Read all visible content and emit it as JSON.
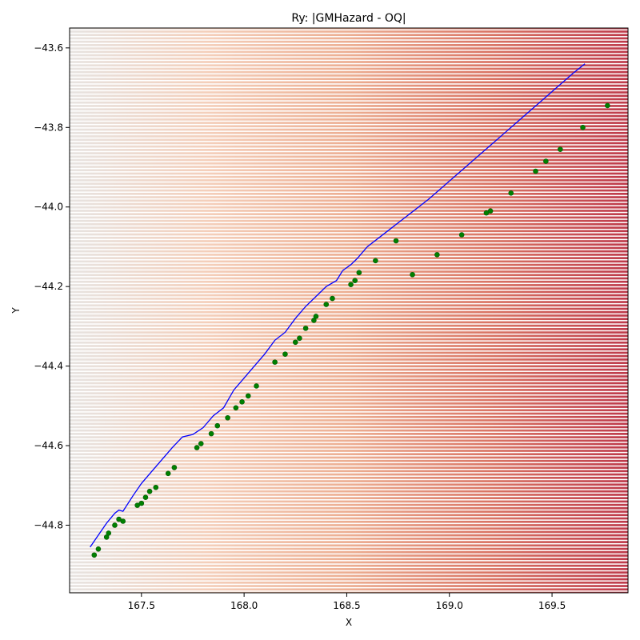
{
  "chart_data": {
    "type": "scatter",
    "title": "Ry: |GMHazard - OQ|",
    "xlabel": "X",
    "ylabel": "Y",
    "xlim": [
      167.15,
      169.87
    ],
    "ylim": [
      -44.97,
      -43.55
    ],
    "xticks": [
      {
        "value": 167.5,
        "label": "167.5"
      },
      {
        "value": 168.0,
        "label": "168.0"
      },
      {
        "value": 168.5,
        "label": "168.5"
      },
      {
        "value": 169.0,
        "label": "169.0"
      },
      {
        "value": 169.5,
        "label": "169.5"
      }
    ],
    "yticks": [
      {
        "value": -43.6,
        "label": "−43.6"
      },
      {
        "value": -43.8,
        "label": "−43.8"
      },
      {
        "value": -44.0,
        "label": "−44.0"
      },
      {
        "value": -44.2,
        "label": "−44.2"
      },
      {
        "value": -44.4,
        "label": "−44.4"
      },
      {
        "value": -44.6,
        "label": "−44.6"
      },
      {
        "value": -44.8,
        "label": "−44.8"
      }
    ],
    "grid": false,
    "background_field": {
      "description_colormap": "RdBu_r",
      "colors": [
        "#e3dfdc",
        "#f2c6ae",
        "#e9a07f",
        "#d35d4a",
        "#b2182b"
      ],
      "row_step": 0.0085
    },
    "series": [
      {
        "kind": "line",
        "color": "#0000ff",
        "points": [
          [
            167.25,
            -44.855
          ],
          [
            167.29,
            -44.825
          ],
          [
            167.33,
            -44.795
          ],
          [
            167.37,
            -44.77
          ],
          [
            167.39,
            -44.762
          ],
          [
            167.41,
            -44.765
          ],
          [
            167.46,
            -44.725
          ],
          [
            167.5,
            -44.695
          ],
          [
            167.55,
            -44.665
          ],
          [
            167.6,
            -44.635
          ],
          [
            167.65,
            -44.605
          ],
          [
            167.7,
            -44.578
          ],
          [
            167.75,
            -44.572
          ],
          [
            167.8,
            -44.555
          ],
          [
            167.85,
            -44.525
          ],
          [
            167.9,
            -44.505
          ],
          [
            167.95,
            -44.46
          ],
          [
            168.0,
            -44.43
          ],
          [
            168.05,
            -44.4
          ],
          [
            168.1,
            -44.37
          ],
          [
            168.15,
            -44.335
          ],
          [
            168.2,
            -44.315
          ],
          [
            168.25,
            -44.28
          ],
          [
            168.3,
            -44.25
          ],
          [
            168.35,
            -44.225
          ],
          [
            168.4,
            -44.2
          ],
          [
            168.45,
            -44.185
          ],
          [
            168.48,
            -44.16
          ],
          [
            168.52,
            -44.145
          ],
          [
            168.55,
            -44.13
          ],
          [
            168.6,
            -44.1
          ],
          [
            168.7,
            -44.06
          ],
          [
            168.8,
            -44.02
          ],
          [
            168.9,
            -43.98
          ],
          [
            169.0,
            -43.935
          ],
          [
            169.1,
            -43.89
          ],
          [
            169.2,
            -43.845
          ],
          [
            169.3,
            -43.8
          ],
          [
            169.4,
            -43.755
          ],
          [
            169.5,
            -43.71
          ],
          [
            169.6,
            -43.665
          ],
          [
            169.66,
            -43.64
          ]
        ]
      },
      {
        "kind": "scatter",
        "color": "#008000",
        "points": [
          [
            167.27,
            -44.875
          ],
          [
            167.29,
            -44.86
          ],
          [
            167.33,
            -44.83
          ],
          [
            167.34,
            -44.82
          ],
          [
            167.37,
            -44.8
          ],
          [
            167.39,
            -44.785
          ],
          [
            167.41,
            -44.79
          ],
          [
            167.48,
            -44.75
          ],
          [
            167.5,
            -44.745
          ],
          [
            167.52,
            -44.73
          ],
          [
            167.54,
            -44.715
          ],
          [
            167.57,
            -44.705
          ],
          [
            167.63,
            -44.67
          ],
          [
            167.66,
            -44.655
          ],
          [
            167.77,
            -44.605
          ],
          [
            167.79,
            -44.595
          ],
          [
            167.84,
            -44.57
          ],
          [
            167.87,
            -44.55
          ],
          [
            167.92,
            -44.53
          ],
          [
            167.96,
            -44.505
          ],
          [
            167.99,
            -44.49
          ],
          [
            168.02,
            -44.475
          ],
          [
            168.06,
            -44.45
          ],
          [
            168.15,
            -44.39
          ],
          [
            168.2,
            -44.37
          ],
          [
            168.25,
            -44.34
          ],
          [
            168.27,
            -44.33
          ],
          [
            168.3,
            -44.305
          ],
          [
            168.34,
            -44.285
          ],
          [
            168.35,
            -44.275
          ],
          [
            168.4,
            -44.245
          ],
          [
            168.43,
            -44.23
          ],
          [
            168.52,
            -44.195
          ],
          [
            168.54,
            -44.185
          ],
          [
            168.56,
            -44.165
          ],
          [
            168.64,
            -44.135
          ],
          [
            168.74,
            -44.085
          ],
          [
            168.82,
            -44.17
          ],
          [
            168.94,
            -44.12
          ],
          [
            169.06,
            -44.07
          ],
          [
            169.18,
            -44.015
          ],
          [
            169.2,
            -44.01
          ],
          [
            169.3,
            -43.965
          ],
          [
            169.42,
            -43.91
          ],
          [
            169.47,
            -43.885
          ],
          [
            169.54,
            -43.855
          ],
          [
            169.65,
            -43.8
          ],
          [
            169.77,
            -43.745
          ]
        ]
      }
    ]
  }
}
